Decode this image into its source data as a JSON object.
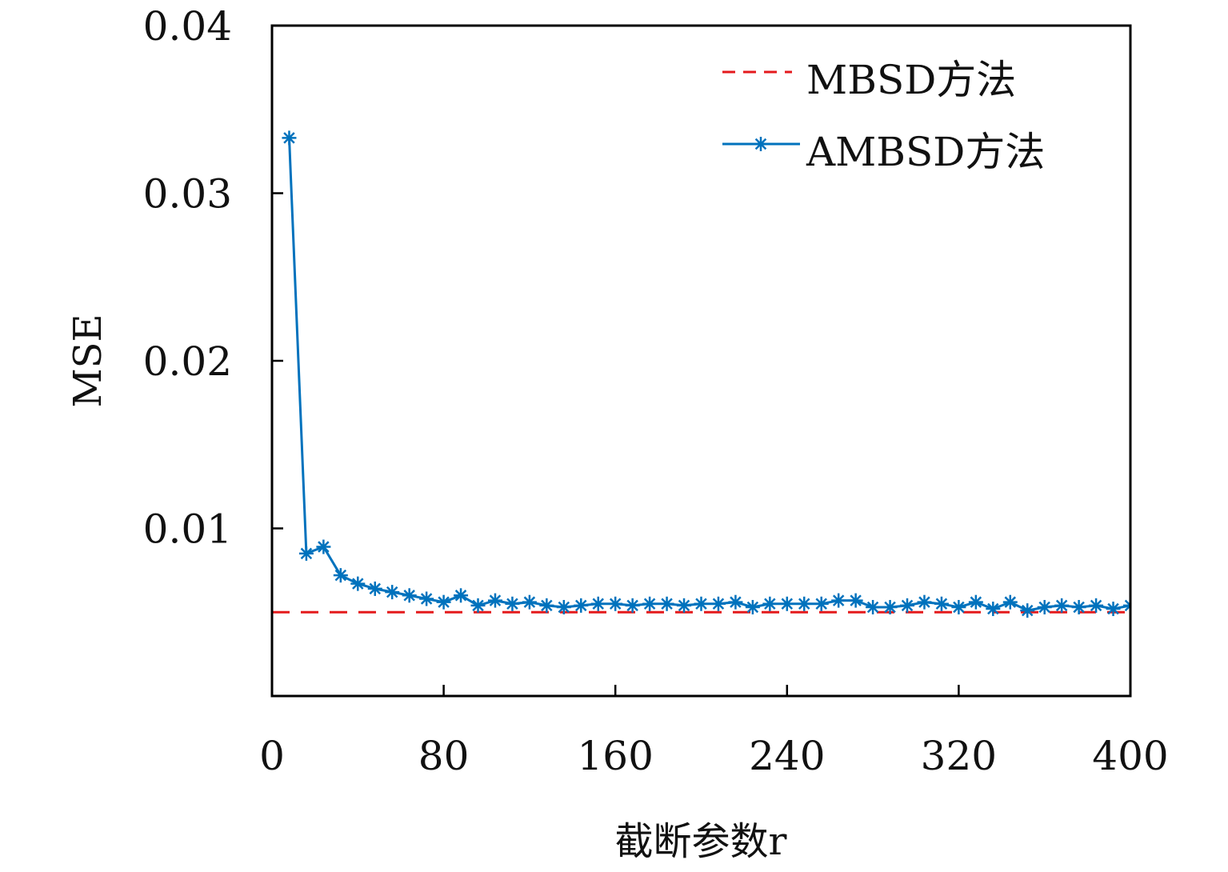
{
  "chart_data": {
    "type": "line",
    "xlabel": "截断参数r",
    "ylabel": "MSE",
    "xlim": [
      0,
      400
    ],
    "ylim": [
      0,
      0.04
    ],
    "x_ticks": [
      "0",
      "80",
      "160",
      "240",
      "320",
      "400"
    ],
    "y_ticks": [
      "0.01",
      "0.02",
      "0.03",
      "0.04"
    ],
    "legend_position": "top-right",
    "series": [
      {
        "name": "MBSD方法",
        "color": "#e41a1c",
        "style": "dashed",
        "x": [
          0,
          400
        ],
        "y": [
          0.005,
          0.005
        ]
      },
      {
        "name": "AMBSD方法",
        "color": "#0072bd",
        "style": "solid",
        "marker": "asterisk",
        "x": [
          8,
          16,
          24,
          32,
          40,
          48,
          56,
          64,
          72,
          80,
          88,
          96,
          104,
          112,
          120,
          128,
          136,
          144,
          152,
          160,
          168,
          176,
          184,
          192,
          200,
          208,
          216,
          224,
          232,
          240,
          248,
          256,
          264,
          272,
          280,
          288,
          296,
          304,
          312,
          320,
          328,
          336,
          344,
          352,
          360,
          368,
          376,
          384,
          392,
          400
        ],
        "y": [
          0.0333,
          0.0085,
          0.0089,
          0.0072,
          0.0067,
          0.0064,
          0.0062,
          0.006,
          0.0058,
          0.0056,
          0.006,
          0.0054,
          0.0057,
          0.0055,
          0.0056,
          0.0054,
          0.0053,
          0.0054,
          0.0055,
          0.0055,
          0.0054,
          0.0055,
          0.0055,
          0.0054,
          0.0055,
          0.0055,
          0.0056,
          0.0053,
          0.0055,
          0.0055,
          0.0055,
          0.0055,
          0.0057,
          0.0057,
          0.0053,
          0.0053,
          0.0054,
          0.0056,
          0.0055,
          0.0053,
          0.0056,
          0.0052,
          0.0056,
          0.0051,
          0.0053,
          0.0054,
          0.0053,
          0.0054,
          0.0052,
          0.0054
        ]
      }
    ]
  }
}
